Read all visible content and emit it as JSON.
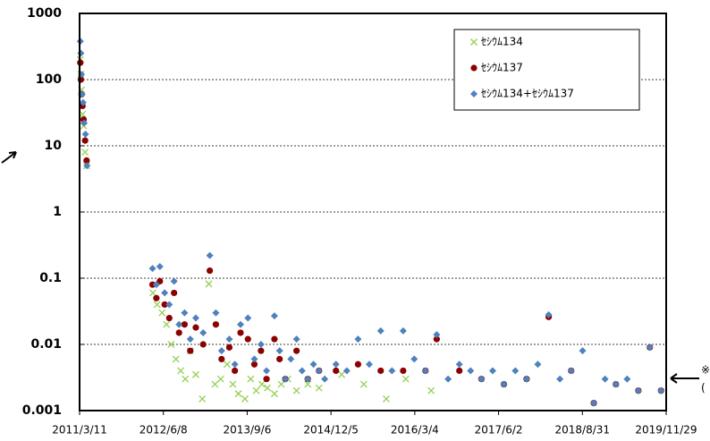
{
  "chart_data": {
    "type": "scatter",
    "log_y": true,
    "grid": true,
    "legend_position": "upper right",
    "xlim": [
      "2011/3/11",
      "2019/11/29"
    ],
    "xticks": [
      "2011/3/11",
      "2012/6/8",
      "2013/9/6",
      "2014/12/5",
      "2016/3/4",
      "2017/6/2",
      "2018/8/31",
      "2019/11/29"
    ],
    "ylim": [
      0.001,
      1000
    ],
    "yticks": [
      1000,
      100,
      10,
      1,
      0.1,
      0.01,
      0.001
    ],
    "annotations": [
      "※",
      "("
    ],
    "series": [
      {
        "name": "ｾｼｳﾑ134",
        "color": "#92d050",
        "marker": "x",
        "x": [
          "2011/3/15",
          "2011/3/18",
          "2011/3/22",
          "2011/3/27",
          "2011/4/2",
          "2011/4/10",
          "2011/4/18",
          "2012/4/12",
          "2012/5/5",
          "2012/6/1",
          "2012/6/25",
          "2012/7/20",
          "2012/8/15",
          "2012/9/10",
          "2012/10/5",
          "2012/11/1",
          "2012/12/1",
          "2013/1/5",
          "2013/2/10",
          "2013/3/15",
          "2013/4/15",
          "2013/5/20",
          "2013/6/20",
          "2013/7/20",
          "2013/8/25",
          "2013/9/25",
          "2013/10/25",
          "2013/11/25",
          "2013/12/25",
          "2014/2/1",
          "2014/3/10",
          "2014/4/15",
          "2014/6/1",
          "2014/8/1",
          "2014/10/1",
          "2015/2/1",
          "2015/6/1",
          "2015/10/1",
          "2016/1/15",
          "2016/6/1"
        ],
        "values": [
          200,
          120,
          70,
          30,
          20,
          8,
          5,
          0.06,
          0.04,
          0.03,
          0.02,
          0.01,
          0.006,
          0.004,
          0.003,
          0.008,
          0.0035,
          0.0015,
          0.082,
          0.0025,
          0.003,
          0.005,
          0.0025,
          0.0018,
          0.0015,
          0.003,
          0.002,
          0.0025,
          0.0022,
          0.0018,
          0.0025,
          0.003,
          0.002,
          0.0025,
          0.0022,
          0.0035,
          0.0025,
          0.0015,
          0.003,
          0.002
        ]
      },
      {
        "name": "ｾｼｳﾑ137",
        "color": "#8b0000",
        "marker": "circle",
        "x": [
          "2011/3/15",
          "2011/3/18",
          "2011/3/22",
          "2011/3/27",
          "2011/4/2",
          "2011/4/10",
          "2011/4/18",
          "2012/4/10",
          "2012/5/1",
          "2012/5/20",
          "2012/6/15",
          "2012/7/10",
          "2012/8/5",
          "2012/9/1",
          "2012/10/1",
          "2012/11/1",
          "2012/12/1",
          "2013/1/10",
          "2013/2/15",
          "2013/3/20",
          "2013/4/20",
          "2013/6/1",
          "2013/7/1",
          "2013/8/1",
          "2013/9/10",
          "2013/10/15",
          "2013/11/20",
          "2013/12/20",
          "2014/2/1",
          "2014/3/1",
          "2014/4/1",
          "2014/6/1",
          "2014/8/1",
          "2014/10/1",
          "2015/1/1",
          "2015/5/1",
          "2015/9/1",
          "2016/1/1",
          "2016/5/1",
          "2016/7/1",
          "2016/11/1",
          "2017/3/1",
          "2017/7/1",
          "2017/11/1",
          "2018/3/1",
          "2018/7/1",
          "2018/11/1",
          "2019/3/1",
          "2019/7/1",
          "2019/9/1",
          "2019/11/1"
        ],
        "values": [
          180,
          100,
          60,
          40,
          25,
          12,
          6,
          0.08,
          0.05,
          0.09,
          0.04,
          0.025,
          0.06,
          0.015,
          0.02,
          0.008,
          0.018,
          0.01,
          0.13,
          0.02,
          0.006,
          0.009,
          0.004,
          0.015,
          0.012,
          0.005,
          0.008,
          0.003,
          0.012,
          0.006,
          0.003,
          0.008,
          0.003,
          0.004,
          0.004,
          0.005,
          0.004,
          0.004,
          0.004,
          0.012,
          0.004,
          0.003,
          0.0025,
          0.003,
          0.026,
          0.004,
          0.0013,
          0.0025,
          0.002,
          0.009,
          0.002
        ]
      },
      {
        "name": "ｾｼｳﾑ134+ｾｼｳﾑ137",
        "color": "#4f81bd",
        "marker": "diamond",
        "x": [
          "2011/3/15",
          "2011/3/18",
          "2011/3/21",
          "2011/3/25",
          "2011/3/30",
          "2011/4/5",
          "2011/4/12",
          "2011/4/20",
          "2012/4/10",
          "2012/5/1",
          "2012/5/20",
          "2012/6/15",
          "2012/7/10",
          "2012/8/5",
          "2012/9/1",
          "2012/10/1",
          "2012/11/1",
          "2012/12/1",
          "2013/1/10",
          "2013/2/15",
          "2013/3/20",
          "2013/4/20",
          "2013/6/1",
          "2013/7/1",
          "2013/8/1",
          "2013/9/10",
          "2013/10/15",
          "2013/11/20",
          "2013/12/20",
          "2014/2/1",
          "2014/3/1",
          "2014/4/1",
          "2014/5/1",
          "2014/6/1",
          "2014/7/1",
          "2014/8/1",
          "2014/9/1",
          "2014/10/1",
          "2014/11/1",
          "2015/1/1",
          "2015/3/1",
          "2015/5/1",
          "2015/7/1",
          "2015/9/1",
          "2015/11/1",
          "2016/1/1",
          "2016/3/1",
          "2016/5/1",
          "2016/7/1",
          "2016/9/1",
          "2016/11/1",
          "2017/1/1",
          "2017/3/1",
          "2017/5/1",
          "2017/7/1",
          "2017/9/1",
          "2017/11/1",
          "2018/1/1",
          "2018/3/1",
          "2018/5/1",
          "2018/7/1",
          "2018/9/1",
          "2018/11/1",
          "2019/1/1",
          "2019/3/1",
          "2019/5/1",
          "2019/7/1",
          "2019/9/1",
          "2019/11/1"
        ],
        "values": [
          380,
          250,
          120,
          60,
          45,
          22,
          15,
          5,
          0.14,
          0.08,
          0.15,
          0.06,
          0.04,
          0.09,
          0.02,
          0.03,
          0.012,
          0.025,
          0.015,
          0.22,
          0.03,
          0.008,
          0.012,
          0.005,
          0.02,
          0.025,
          0.006,
          0.01,
          0.004,
          0.027,
          0.008,
          0.003,
          0.006,
          0.012,
          0.004,
          0.003,
          0.005,
          0.004,
          0.003,
          0.005,
          0.004,
          0.012,
          0.005,
          0.016,
          0.004,
          0.016,
          0.006,
          0.004,
          0.014,
          0.003,
          0.005,
          0.004,
          0.003,
          0.004,
          0.0025,
          0.004,
          0.003,
          0.005,
          0.028,
          0.003,
          0.004,
          0.008,
          0.0013,
          0.003,
          0.0025,
          0.003,
          0.002,
          0.009,
          0.002
        ]
      }
    ]
  }
}
